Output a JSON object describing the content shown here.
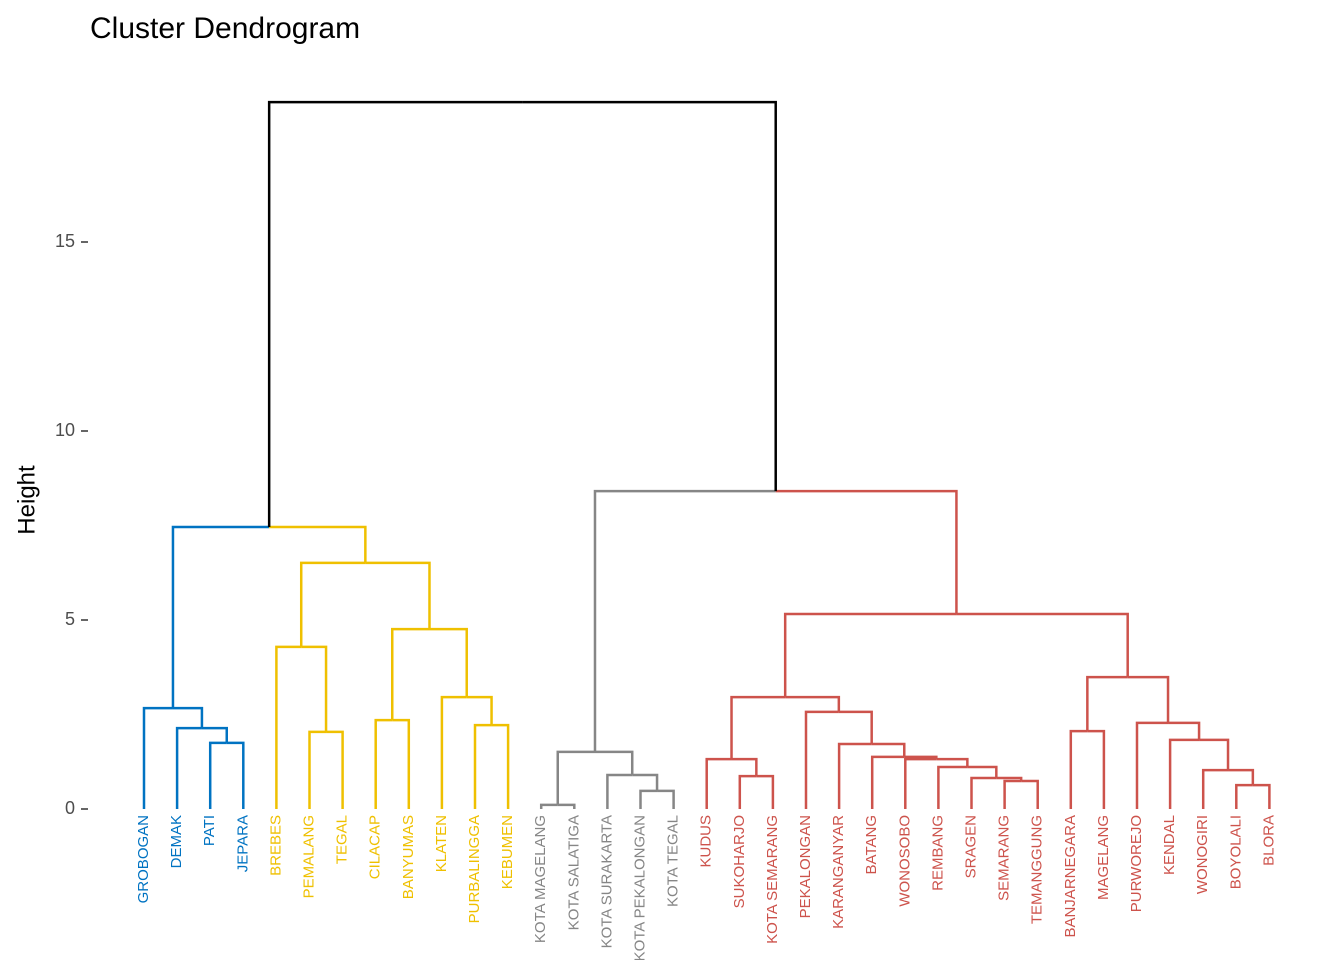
{
  "chart_data": {
    "type": "dendrogram",
    "title": "Cluster Dendrogram",
    "ylabel": "Height",
    "ylim": [
      0,
      20
    ],
    "yticks": [
      0,
      5,
      10,
      15
    ],
    "leaves": [
      {
        "label": "GROBOGAN",
        "color": "#0073C2"
      },
      {
        "label": "DEMAK",
        "color": "#0073C2"
      },
      {
        "label": "PATI",
        "color": "#0073C2"
      },
      {
        "label": "JEPARA",
        "color": "#0073C2"
      },
      {
        "label": "BREBES",
        "color": "#EFC000"
      },
      {
        "label": "PEMALANG",
        "color": "#EFC000"
      },
      {
        "label": "TEGAL",
        "color": "#EFC000"
      },
      {
        "label": "CILACAP",
        "color": "#EFC000"
      },
      {
        "label": "BANYUMAS",
        "color": "#EFC000"
      },
      {
        "label": "KLATEN",
        "color": "#EFC000"
      },
      {
        "label": "PURBALINGGA",
        "color": "#EFC000"
      },
      {
        "label": "KEBUMEN",
        "color": "#EFC000"
      },
      {
        "label": "KOTA MAGELANG",
        "color": "#868686"
      },
      {
        "label": "KOTA SALATIGA",
        "color": "#868686"
      },
      {
        "label": "KOTA SURAKARTA",
        "color": "#868686"
      },
      {
        "label": "KOTA PEKALONGAN",
        "color": "#868686"
      },
      {
        "label": "KOTA TEGAL",
        "color": "#868686"
      },
      {
        "label": "KUDUS",
        "color": "#CD534C"
      },
      {
        "label": "SUKOHARJO",
        "color": "#CD534C"
      },
      {
        "label": "KOTA SEMARANG",
        "color": "#CD534C"
      },
      {
        "label": "PEKALONGAN",
        "color": "#CD534C"
      },
      {
        "label": "KARANGANYAR",
        "color": "#CD534C"
      },
      {
        "label": "BATANG",
        "color": "#CD534C"
      },
      {
        "label": "WONOSOBO",
        "color": "#CD534C"
      },
      {
        "label": "REMBANG",
        "color": "#CD534C"
      },
      {
        "label": "SRAGEN",
        "color": "#CD534C"
      },
      {
        "label": "SEMARANG",
        "color": "#CD534C"
      },
      {
        "label": "TEMANGGUNG",
        "color": "#CD534C"
      },
      {
        "label": "BANJARNEGARA",
        "color": "#CD534C"
      },
      {
        "label": "MAGELANG",
        "color": "#CD534C"
      },
      {
        "label": "PURWOREJO",
        "color": "#CD534C"
      },
      {
        "label": "KENDAL",
        "color": "#CD534C"
      },
      {
        "label": "WONOGIRI",
        "color": "#CD534C"
      },
      {
        "label": "BOYOLALI",
        "color": "#CD534C"
      },
      {
        "label": "BLORA",
        "color": "#CD534C"
      }
    ],
    "merges": [
      {
        "children": [
          -3,
          -4
        ],
        "height": 1.75,
        "color": "#0073C2"
      },
      {
        "children": [
          -2,
          1
        ],
        "height": 2.14,
        "color": "#0073C2"
      },
      {
        "children": [
          -1,
          2
        ],
        "height": 2.67,
        "color": "#0073C2"
      },
      {
        "children": [
          -6,
          -7
        ],
        "height": 2.04,
        "color": "#EFC000"
      },
      {
        "children": [
          -5,
          4
        ],
        "height": 4.29,
        "color": "#EFC000"
      },
      {
        "children": [
          -8,
          -9
        ],
        "height": 2.35,
        "color": "#EFC000"
      },
      {
        "children": [
          -11,
          -12
        ],
        "height": 2.22,
        "color": "#EFC000"
      },
      {
        "children": [
          -10,
          7
        ],
        "height": 2.96,
        "color": "#EFC000"
      },
      {
        "children": [
          6,
          8
        ],
        "height": 4.76,
        "color": "#EFC000"
      },
      {
        "children": [
          5,
          9
        ],
        "height": 6.51,
        "color": "#EFC000"
      },
      {
        "children": [
          3,
          10
        ],
        "height": 7.46,
        "color": "#000000"
      },
      {
        "children": [
          -13,
          -14
        ],
        "height": 0.11,
        "color": "#868686"
      },
      {
        "children": [
          -16,
          -17
        ],
        "height": 0.48,
        "color": "#868686"
      },
      {
        "children": [
          -15,
          13
        ],
        "height": 0.9,
        "color": "#868686"
      },
      {
        "children": [
          12,
          14
        ],
        "height": 1.51,
        "color": "#868686"
      },
      {
        "children": [
          -19,
          -20
        ],
        "height": 0.87,
        "color": "#CD534C"
      },
      {
        "children": [
          -18,
          16
        ],
        "height": 1.32,
        "color": "#CD534C"
      },
      {
        "children": [
          -27,
          -28
        ],
        "height": 0.74,
        "color": "#CD534C"
      },
      {
        "children": [
          -26,
          18
        ],
        "height": 0.82,
        "color": "#CD534C"
      },
      {
        "children": [
          -25,
          19
        ],
        "height": 1.11,
        "color": "#CD534C"
      },
      {
        "children": [
          -24,
          20
        ],
        "height": 1.32,
        "color": "#CD534C"
      },
      {
        "children": [
          -23,
          21
        ],
        "height": 1.38,
        "color": "#CD534C"
      },
      {
        "children": [
          -22,
          22
        ],
        "height": 1.72,
        "color": "#CD534C"
      },
      {
        "children": [
          -21,
          23
        ],
        "height": 2.57,
        "color": "#CD534C"
      },
      {
        "children": [
          17,
          24
        ],
        "height": 2.96,
        "color": "#CD534C"
      },
      {
        "children": [
          -29,
          -30
        ],
        "height": 2.06,
        "color": "#CD534C"
      },
      {
        "children": [
          -34,
          -35
        ],
        "height": 0.63,
        "color": "#CD534C"
      },
      {
        "children": [
          -33,
          27
        ],
        "height": 1.03,
        "color": "#CD534C"
      },
      {
        "children": [
          -32,
          28
        ],
        "height": 1.83,
        "color": "#CD534C"
      },
      {
        "children": [
          -31,
          29
        ],
        "height": 2.28,
        "color": "#CD534C"
      },
      {
        "children": [
          26,
          30
        ],
        "height": 3.49,
        "color": "#CD534C"
      },
      {
        "children": [
          25,
          31
        ],
        "height": 5.16,
        "color": "#CD534C"
      },
      {
        "children": [
          15,
          32
        ],
        "height": 8.41,
        "color": "#000000"
      },
      {
        "children": [
          11,
          33
        ],
        "height": 18.7,
        "color": "#000000"
      }
    ]
  }
}
